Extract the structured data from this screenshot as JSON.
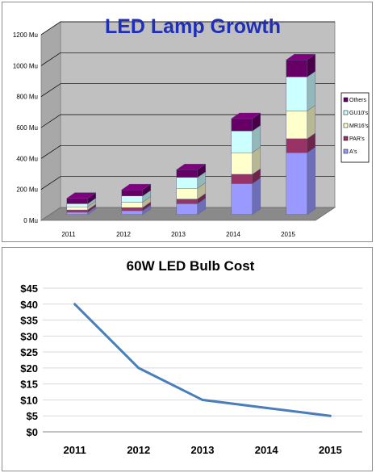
{
  "chart_data": [
    {
      "type": "bar",
      "stacked": true,
      "three_d": true,
      "title": "LED Lamp Growth",
      "title_color": "#1f2fb8",
      "categories": [
        "2011",
        "2012",
        "2013",
        "2014",
        "2015"
      ],
      "y_ticks": [
        "0 Mu",
        "200 Mu",
        "400 Mu",
        "600 Mu",
        "800 Mu",
        "1000 Mu",
        "1200 Mu"
      ],
      "ylim": [
        0,
        1200
      ],
      "grid": true,
      "legend_position": "right",
      "series": [
        {
          "name": "A's",
          "color": "#9999ff",
          "values": [
            15,
            25,
            70,
            200,
            400
          ]
        },
        {
          "name": "PAR's",
          "color": "#993366",
          "values": [
            15,
            20,
            30,
            60,
            90
          ]
        },
        {
          "name": "MR16's",
          "color": "#ffffcc",
          "values": [
            20,
            35,
            70,
            140,
            180
          ]
        },
        {
          "name": "GU10's",
          "color": "#ccffff",
          "values": [
            20,
            40,
            70,
            140,
            220
          ]
        },
        {
          "name": "Others",
          "color": "#660066",
          "values": [
            35,
            40,
            50,
            80,
            110
          ]
        }
      ]
    },
    {
      "type": "line",
      "title": "60W LED Bulb Cost",
      "categories": [
        "2011",
        "2012",
        "2013",
        "2014",
        "2015"
      ],
      "values": [
        40,
        20,
        10,
        7.5,
        5
      ],
      "y_ticks": [
        "$0",
        "$5",
        "$10",
        "$15",
        "$20",
        "$25",
        "$30",
        "$35",
        "$40",
        "$45"
      ],
      "ylim": [
        0,
        45
      ],
      "line_color": "#4a7ebb",
      "grid": true
    }
  ]
}
